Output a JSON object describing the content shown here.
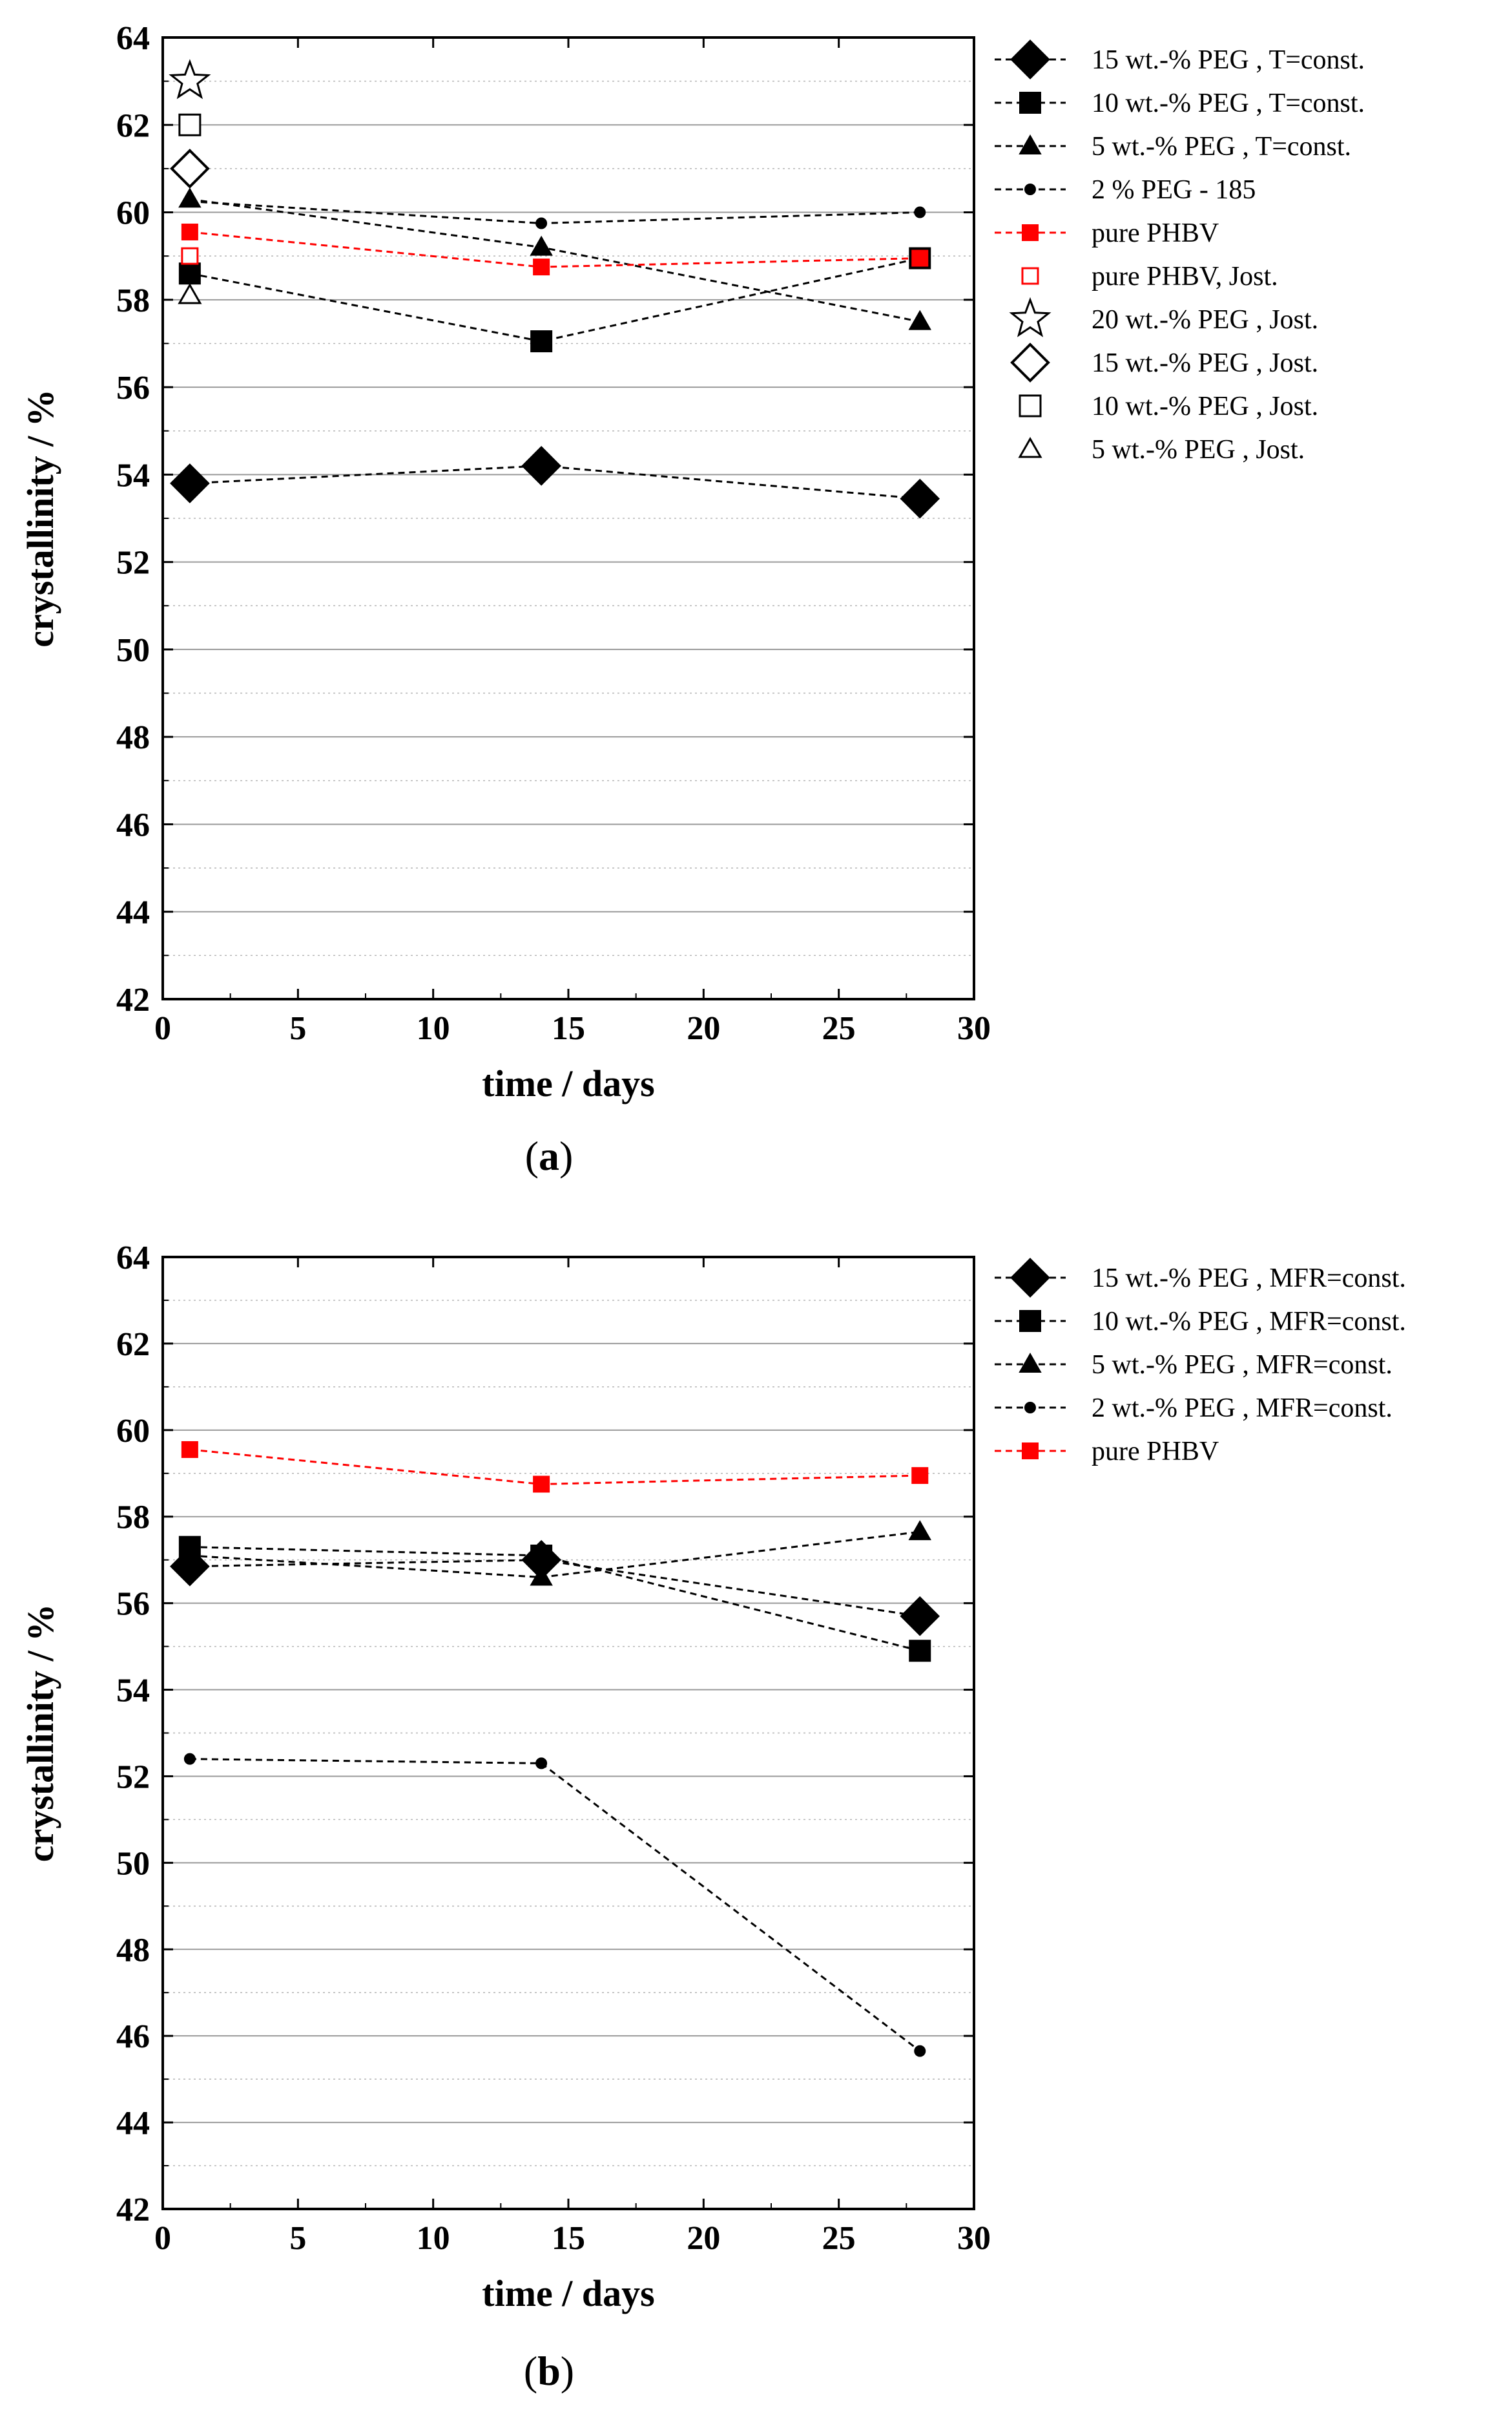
{
  "chart_data": [
    {
      "id": "a",
      "type": "line",
      "panel_label": "a",
      "xlabel": "time / days",
      "ylabel": "crystallinity / %",
      "xlim": [
        0,
        30
      ],
      "ylim": [
        42,
        64
      ],
      "xticks": [
        0,
        5,
        10,
        15,
        20,
        25,
        30
      ],
      "yticks": [
        42,
        44,
        46,
        48,
        50,
        52,
        54,
        56,
        58,
        60,
        62,
        64
      ],
      "legend_position": "right-outside",
      "series": [
        {
          "name": "15 wt.-% PEG , T=const.",
          "marker": "diamond",
          "filled": true,
          "color": "#000000",
          "line": "dashed",
          "x": [
            1,
            14,
            28
          ],
          "y": [
            53.8,
            54.2,
            53.45
          ]
        },
        {
          "name": "10 wt.-% PEG , T=const.",
          "marker": "square",
          "filled": true,
          "color": "#000000",
          "line": "dashed",
          "x": [
            1,
            14,
            28
          ],
          "y": [
            58.6,
            57.05,
            58.95
          ]
        },
        {
          "name": "5 wt.-% PEG , T=const.",
          "marker": "triangle",
          "filled": true,
          "color": "#000000",
          "line": "dashed",
          "x": [
            1,
            14,
            28
          ],
          "y": [
            60.3,
            59.2,
            57.5
          ]
        },
        {
          "name": "2 % PEG - 185",
          "marker": "dot",
          "filled": true,
          "color": "#000000",
          "line": "dashed",
          "x": [
            1,
            14,
            28
          ],
          "y": [
            60.25,
            59.75,
            60.0
          ]
        },
        {
          "name": "pure PHBV",
          "marker": "square-small",
          "filled": true,
          "color": "#ff0000",
          "line": "dashed",
          "x": [
            1,
            14,
            28
          ],
          "y": [
            59.55,
            58.75,
            58.95
          ]
        },
        {
          "name": "pure PHBV, Jost.",
          "marker": "square-small",
          "filled": false,
          "color": "#ff0000",
          "line": "none",
          "x": [
            1
          ],
          "y": [
            59.0
          ]
        },
        {
          "name": "20 wt.-% PEG , Jost.",
          "marker": "star",
          "filled": false,
          "color": "#000000",
          "line": "none",
          "x": [
            1
          ],
          "y": [
            63.0
          ]
        },
        {
          "name": "15 wt.-% PEG , Jost.",
          "marker": "diamond",
          "filled": false,
          "color": "#000000",
          "line": "none",
          "x": [
            1
          ],
          "y": [
            61.0
          ]
        },
        {
          "name": "10 wt.-% PEG , Jost.",
          "marker": "square",
          "filled": false,
          "color": "#000000",
          "line": "none",
          "x": [
            1
          ],
          "y": [
            62.0
          ]
        },
        {
          "name": "5 wt.-% PEG , Jost.",
          "marker": "triangle",
          "filled": false,
          "color": "#000000",
          "line": "none",
          "x": [
            1
          ],
          "y": [
            58.1
          ]
        }
      ]
    },
    {
      "id": "b",
      "type": "line",
      "panel_label": "b",
      "xlabel": "time / days",
      "ylabel": "crystallinity / %",
      "xlim": [
        0,
        30
      ],
      "ylim": [
        42,
        64
      ],
      "xticks": [
        0,
        5,
        10,
        15,
        20,
        25,
        30
      ],
      "yticks": [
        42,
        44,
        46,
        48,
        50,
        52,
        54,
        56,
        58,
        60,
        62,
        64
      ],
      "legend_position": "right-outside",
      "series": [
        {
          "name": "15 wt.-% PEG , MFR=const.",
          "marker": "diamond",
          "filled": true,
          "color": "#000000",
          "line": "dashed",
          "x": [
            1,
            14,
            28
          ],
          "y": [
            56.85,
            57.0,
            55.7
          ]
        },
        {
          "name": "10 wt.-% PEG , MFR=const.",
          "marker": "square",
          "filled": true,
          "color": "#000000",
          "line": "dashed",
          "x": [
            1,
            14,
            28
          ],
          "y": [
            57.3,
            57.1,
            54.9
          ]
        },
        {
          "name": "5 wt.-% PEG , MFR=const.",
          "marker": "triangle",
          "filled": true,
          "color": "#000000",
          "line": "dashed",
          "x": [
            1,
            14,
            28
          ],
          "y": [
            57.1,
            56.6,
            57.65
          ]
        },
        {
          "name": "2 wt.-% PEG , MFR=const.",
          "marker": "dot",
          "filled": true,
          "color": "#000000",
          "line": "dashed",
          "x": [
            1,
            14,
            28
          ],
          "y": [
            52.4,
            52.3,
            45.65
          ]
        },
        {
          "name": "pure PHBV",
          "marker": "square-small",
          "filled": true,
          "color": "#ff0000",
          "line": "dashed",
          "x": [
            1,
            14,
            28
          ],
          "y": [
            59.55,
            58.75,
            58.95
          ]
        }
      ]
    }
  ]
}
